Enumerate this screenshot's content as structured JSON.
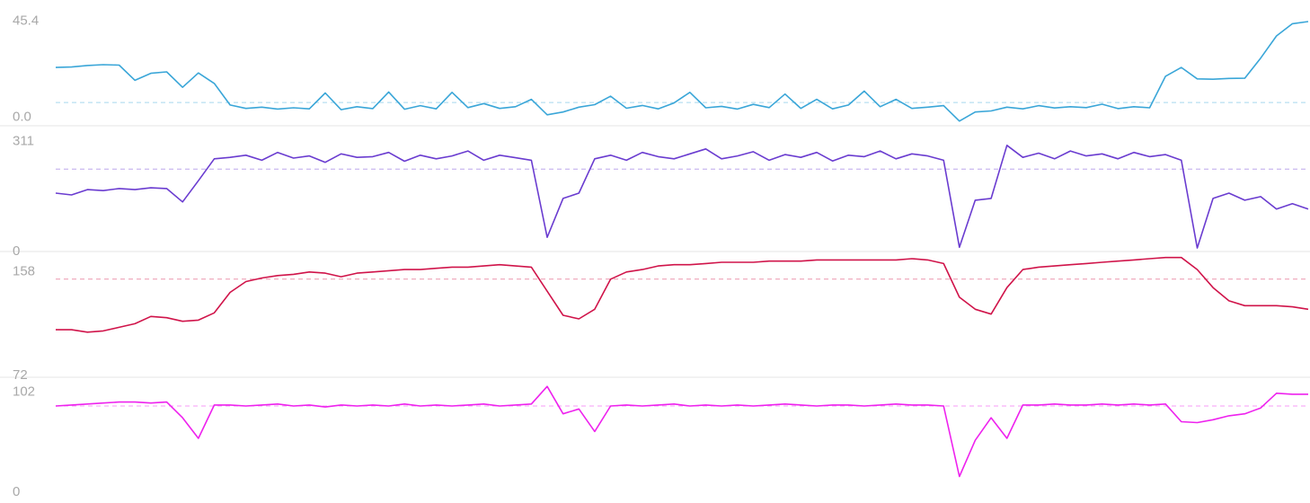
{
  "chart_data": [
    {
      "type": "line",
      "color": "#3aa6d8",
      "ylim": [
        -4,
        47
      ],
      "yticks": [
        {
          "value": 0,
          "label": "0.0"
        },
        45.4
      ],
      "reference_line": 7,
      "categories": [
        null,
        null,
        null,
        null,
        null,
        null,
        null,
        null,
        null,
        null,
        null,
        null,
        null,
        null,
        null,
        null,
        null,
        null,
        null,
        null,
        null,
        null,
        null,
        null,
        null,
        null,
        null,
        null,
        null,
        null,
        null,
        null,
        null,
        null,
        null,
        null,
        null,
        null,
        null,
        null,
        null,
        null,
        null,
        null,
        null,
        null,
        null,
        null,
        null,
        null,
        null,
        null,
        null,
        null,
        null,
        null,
        null,
        null,
        null,
        null,
        null,
        null,
        null,
        null,
        null,
        null,
        null,
        null,
        null,
        null,
        null,
        null,
        null,
        null,
        null,
        null,
        null,
        null,
        null,
        null
      ],
      "values": [
        23.6,
        23.8,
        24.5,
        24.9,
        24.7,
        17.5,
        20.8,
        21.5,
        14.2,
        21.0,
        16.0,
        5.8,
        4.2,
        4.8,
        3.9,
        4.5,
        4.0,
        11.5,
        3.6,
        5.0,
        4.1,
        12.0,
        3.8,
        5.5,
        4.0,
        11.8,
        4.6,
        6.5,
        4.2,
        5.0,
        8.5,
        1.2,
        2.5,
        4.8,
        6.0,
        10.0,
        4.3,
        5.6,
        4.0,
        6.8,
        11.8,
        4.5,
        5.2,
        3.9,
        6.1,
        4.6,
        11.0,
        4.2,
        8.5,
        4.0,
        5.8,
        12.4,
        5.0,
        8.5,
        4.2,
        4.8,
        5.5,
        -1.8,
        2.5,
        3.0,
        4.8,
        4.0,
        5.5,
        4.4,
        5.0,
        4.6,
        6.2,
        4.1,
        5.0,
        4.5,
        19.4,
        23.6,
        18.2,
        18.0,
        18.4,
        18.5,
        28,
        38.5,
        44.3,
        45.3
      ]
    },
    {
      "type": "line",
      "color": "#6a3cd0",
      "ylim": [
        0,
        330
      ],
      "yticks": [
        0,
        311
      ],
      "reference_line": 233,
      "categories": [
        null,
        null,
        null,
        null,
        null,
        null,
        null,
        null,
        null,
        null,
        null,
        null,
        null,
        null,
        null,
        null,
        null,
        null,
        null,
        null,
        null,
        null,
        null,
        null,
        null,
        null,
        null,
        null,
        null,
        null,
        null,
        null,
        null,
        null,
        null,
        null,
        null,
        null,
        null,
        null,
        null,
        null,
        null,
        null,
        null,
        null,
        null,
        null,
        null,
        null,
        null,
        null,
        null,
        null,
        null,
        null,
        null,
        null,
        null,
        null,
        null,
        null,
        null,
        null,
        null,
        null,
        null,
        null,
        null,
        null,
        null,
        null,
        null,
        null,
        null,
        null,
        null,
        null,
        null,
        null
      ],
      "values": [
        165,
        160,
        175,
        172,
        178,
        175,
        180,
        178,
        140,
        200,
        262,
        266,
        272,
        258,
        280,
        264,
        270,
        252,
        276,
        266,
        268,
        280,
        255,
        272,
        262,
        270,
        284,
        258,
        272,
        265,
        258,
        40,
        150,
        165,
        262,
        272,
        258,
        280,
        268,
        262,
        276,
        290,
        262,
        270,
        282,
        258,
        274,
        266,
        280,
        256,
        272,
        268,
        284,
        262,
        276,
        270,
        258,
        12,
        145,
        150,
        300,
        266,
        278,
        262,
        284,
        270,
        276,
        262,
        280,
        268,
        274,
        258,
        10,
        150,
        165,
        145,
        155,
        120,
        135,
        120
      ]
    },
    {
      "type": "line",
      "color": "#d0144a",
      "ylim": [
        72,
        172
      ],
      "yticks": [
        72,
        158
      ],
      "reference_line": 152,
      "categories": [
        null,
        null,
        null,
        null,
        null,
        null,
        null,
        null,
        null,
        null,
        null,
        null,
        null,
        null,
        null,
        null,
        null,
        null,
        null,
        null,
        null,
        null,
        null,
        null,
        null,
        null,
        null,
        null,
        null,
        null,
        null,
        null,
        null,
        null,
        null,
        null,
        null,
        null,
        null,
        null,
        null,
        null,
        null,
        null,
        null,
        null,
        null,
        null,
        null,
        null,
        null,
        null,
        null,
        null,
        null,
        null,
        null,
        null,
        null,
        null,
        null,
        null,
        null,
        null,
        null,
        null,
        null,
        null,
        null,
        null,
        null,
        null,
        null,
        null,
        null,
        null,
        null,
        null,
        null,
        null
      ],
      "values": [
        110,
        110,
        108,
        109,
        112,
        115,
        121,
        120,
        117,
        118,
        124,
        141,
        150,
        153,
        155,
        156,
        158,
        157,
        154,
        157,
        158,
        159,
        160,
        160,
        161,
        162,
        162,
        163,
        164,
        163,
        162,
        142,
        122,
        119,
        127,
        152,
        158,
        160,
        163,
        164,
        164,
        165,
        166,
        166,
        166,
        167,
        167,
        167,
        168,
        168,
        168,
        168,
        168,
        168,
        169,
        168,
        165,
        137,
        127,
        123,
        145,
        160,
        162,
        163,
        164,
        165,
        166,
        167,
        168,
        169,
        170,
        170,
        160,
        145,
        134,
        130,
        130,
        130,
        129,
        127
      ]
    },
    {
      "type": "line",
      "color": "#ee22ee",
      "ylim": [
        0,
        110
      ],
      "yticks": [
        0,
        102
      ],
      "reference_line": 88,
      "categories": [
        null,
        null,
        null,
        null,
        null,
        null,
        null,
        null,
        null,
        null,
        null,
        null,
        null,
        null,
        null,
        null,
        null,
        null,
        null,
        null,
        null,
        null,
        null,
        null,
        null,
        null,
        null,
        null,
        null,
        null,
        null,
        null,
        null,
        null,
        null,
        null,
        null,
        null,
        null,
        null,
        null,
        null,
        null,
        null,
        null,
        null,
        null,
        null,
        null,
        null,
        null,
        null,
        null,
        null,
        null,
        null,
        null,
        null,
        null,
        null,
        null,
        null,
        null,
        null,
        null,
        null,
        null,
        null,
        null,
        null,
        null,
        null,
        null,
        null,
        null,
        null,
        null,
        null,
        null,
        null
      ],
      "values": [
        88,
        89,
        90,
        91,
        92,
        92,
        91,
        92,
        76,
        55,
        89,
        89,
        88,
        89,
        90,
        88,
        89,
        87,
        89,
        88,
        89,
        88,
        90,
        88,
        89,
        88,
        89,
        90,
        88,
        89,
        90,
        108,
        80,
        85,
        62,
        88,
        89,
        88,
        89,
        90,
        88,
        89,
        88,
        89,
        88,
        89,
        90,
        89,
        88,
        89,
        89,
        88,
        89,
        90,
        89,
        89,
        88,
        16,
        53,
        76,
        55,
        89,
        89,
        90,
        89,
        89,
        90,
        89,
        90,
        89,
        90,
        72,
        71,
        74,
        78,
        80,
        86,
        101,
        100,
        100
      ]
    }
  ]
}
